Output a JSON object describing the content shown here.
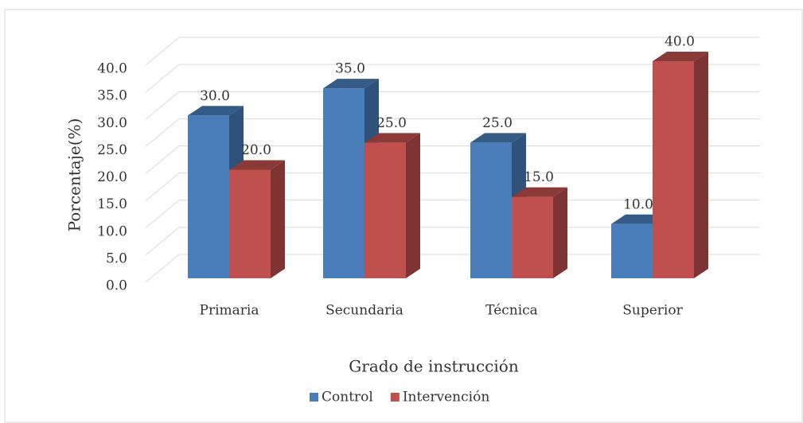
{
  "chart_data": {
    "type": "bar3d",
    "x_label": "Grado de instrucción",
    "y_label": "Porcentaje(%)",
    "categories": [
      "Primaria",
      "Secundaria",
      "Técnica",
      "Superior"
    ],
    "series": [
      {
        "name": "Control",
        "color": "#4a7ebb",
        "values": [
          30,
          35,
          25,
          10
        ],
        "value_labels": [
          "30.0",
          "35.0",
          "25.0",
          "10.0"
        ]
      },
      {
        "name": "Intervención",
        "color": "#c0504d",
        "values": [
          20,
          25,
          15,
          40
        ],
        "value_labels": [
          "20.0",
          "25.0",
          "15.0",
          "40.0"
        ]
      }
    ],
    "ylim": [
      0,
      40
    ],
    "yticks": [
      {
        "value": 0,
        "label": "0.0"
      },
      {
        "value": 5,
        "label": "5.0"
      },
      {
        "value": 10,
        "label": "10.0"
      },
      {
        "value": 15,
        "label": "15.0"
      },
      {
        "value": 20,
        "label": "20.0"
      },
      {
        "value": 25,
        "label": "25.0"
      },
      {
        "value": 30,
        "label": "30.0"
      },
      {
        "value": 35,
        "label": "35.0"
      },
      {
        "value": 40,
        "label": "40.0"
      }
    ],
    "grid": true,
    "legend": "bottom"
  }
}
